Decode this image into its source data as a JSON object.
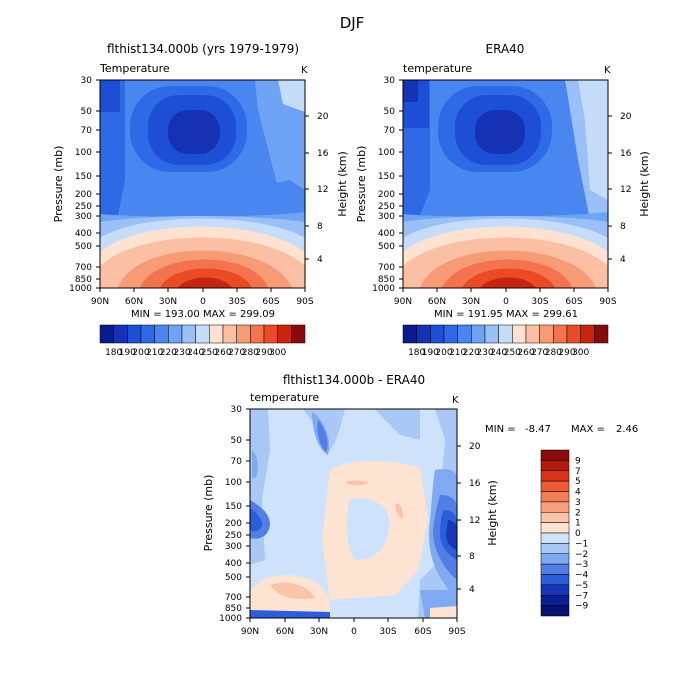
{
  "figure_title": "DJF",
  "chart_data": [
    {
      "type": "heatmap",
      "title": "flthist134.000b (yrs 1979-1979)",
      "field_label": "Temperature",
      "units": "K",
      "ylabel": "Pressure (mb)",
      "y2label": "Height (km)",
      "x_ticks": [
        "90N",
        "60N",
        "30N",
        "0",
        "30S",
        "60S",
        "90S"
      ],
      "y_ticks": [
        "30",
        "50",
        "70",
        "100",
        "150",
        "200",
        "250",
        "300",
        "400",
        "500",
        "700",
        "850",
        "1000"
      ],
      "y2_ticks": [
        "20",
        "16",
        "12",
        "8",
        "4"
      ],
      "min_max": "MIN = 193.00   MAX = 299.09",
      "colorbar_labels": [
        "180",
        "190",
        "200",
        "210",
        "220",
        "230",
        "240",
        "250",
        "260",
        "270",
        "280",
        "290",
        "300"
      ],
      "colorbar_colors": [
        "#0b1a8c",
        "#1532b4",
        "#1d4fd6",
        "#2f6ae6",
        "#4a86f0",
        "#6fa3f5",
        "#9ac0f7",
        "#c6dcfb",
        "#fde2d2",
        "#fbc0a4",
        "#f79a76",
        "#f3734f",
        "#ea4a24",
        "#c9240e",
        "#8a0a0a"
      ]
    },
    {
      "type": "heatmap",
      "title": "ERA40",
      "field_label": "temperature",
      "units": "K",
      "ylabel": "Pressure (mb)",
      "y2label": "Height (km)",
      "x_ticks": [
        "90N",
        "60N",
        "30N",
        "0",
        "30S",
        "60S",
        "90S"
      ],
      "y_ticks": [
        "30",
        "50",
        "70",
        "100",
        "150",
        "200",
        "250",
        "300",
        "400",
        "500",
        "700",
        "850",
        "1000"
      ],
      "y2_ticks": [
        "20",
        "16",
        "12",
        "8",
        "4"
      ],
      "min_max": "MIN = 191.95   MAX = 299.61",
      "colorbar_labels": [
        "180",
        "190",
        "200",
        "210",
        "220",
        "230",
        "240",
        "250",
        "260",
        "270",
        "280",
        "290",
        "300"
      ],
      "colorbar_colors": [
        "#0b1a8c",
        "#1532b4",
        "#1d4fd6",
        "#2f6ae6",
        "#4a86f0",
        "#6fa3f5",
        "#9ac0f7",
        "#c6dcfb",
        "#fde2d2",
        "#fbc0a4",
        "#f79a76",
        "#f3734f",
        "#ea4a24",
        "#c9240e",
        "#8a0a0a"
      ]
    },
    {
      "type": "heatmap",
      "title": "flthist134.000b - ERA40",
      "field_label": "temperature",
      "units": "K",
      "ylabel": "Pressure (mb)",
      "y2label": "Height (km)",
      "x_ticks": [
        "90N",
        "60N",
        "30N",
        "0",
        "30S",
        "60S",
        "90S"
      ],
      "y_ticks": [
        "30",
        "50",
        "70",
        "100",
        "150",
        "200",
        "250",
        "300",
        "400",
        "500",
        "700",
        "850",
        "1000"
      ],
      "y2_ticks": [
        "20",
        "16",
        "12",
        "8",
        "4"
      ],
      "min_label": "MIN =",
      "min_value": "-8.47",
      "max_label": "MAX =",
      "max_value": "2.46",
      "colorbar_labels": [
        "9",
        "7",
        "5",
        "4",
        "3",
        "2",
        "1",
        "0",
        "−1",
        "−2",
        "−3",
        "−4",
        "−5",
        "−7",
        "−9"
      ],
      "colorbar_colors": [
        "#8a0a0a",
        "#b51a0e",
        "#d8341a",
        "#ef5a33",
        "#f57d55",
        "#f8a07d",
        "#fbc3a8",
        "#fde4d2",
        "#cfe2fb",
        "#a9c8f6",
        "#7fa9f0",
        "#527fe6",
        "#2b5ed8",
        "#1638b8",
        "#0a2196",
        "#061371"
      ]
    }
  ]
}
